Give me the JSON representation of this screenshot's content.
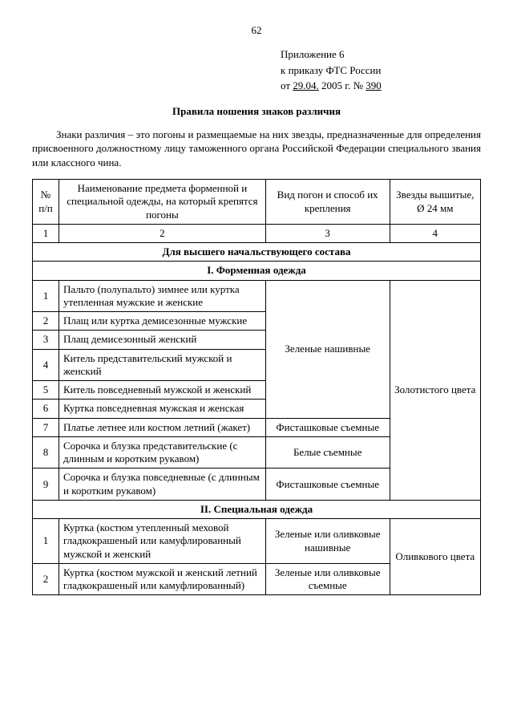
{
  "page_number": "62",
  "appendix": {
    "line1": "Приложение 6",
    "line2": "к приказу ФТС России",
    "line3_prefix": "от ",
    "date": "29.04.",
    "year_suffix": " 2005 г. № ",
    "num": "390"
  },
  "title": "Правила ношения знаков различия",
  "intro": "Знаки различия – это погоны и размещаемые на них звезды, предназначенные для определения присвоенного должностному лицу таможенного органа Российской Федерации специального звания или классного чина.",
  "header": {
    "col1": "№ п/п",
    "col2": "Наименование предмета форменной и специальной одежды, на который крепятся погоны",
    "col3": "Вид погон и способ их крепления",
    "col4": "Звезды вышитые, Ø 24 мм"
  },
  "colnums": {
    "c1": "1",
    "c2": "2",
    "c3": "3",
    "c4": "4"
  },
  "sections": {
    "top": "Для высшего начальствующего состава",
    "sec1": "I. Форменная одежда",
    "sec2": "II. Специальная одежда"
  },
  "s1": {
    "r1n": "1",
    "r1t": "Пальто (полупальто) зимнее или куртка утепленная мужские и женские",
    "r2n": "2",
    "r2t": "Плащ или куртка демисезонные мужские",
    "r3n": "3",
    "r3t": "Плащ демисезонный женский",
    "r4n": "4",
    "r4t": "Китель представительский мужской и женский",
    "r5n": "5",
    "r5t": "Китель повседневный мужской и женский",
    "r6n": "6",
    "r6t": "Куртка повседневная мужская и женская",
    "r7n": "7",
    "r7t": "Платье летнее или костюм летний (жакет)",
    "r8n": "8",
    "r8t": "Сорочка и блузка представительские (с длинным и коротким рукавом)",
    "r9n": "9",
    "r9t": "Сорочка и блузка повседневные (с длинным и коротким рукавом)",
    "m1": "Зеленые нашивные",
    "m2": "Фисташковые съемные",
    "m3": "Белые съемные",
    "m4": "Фисташковые съемные",
    "stars": "Золотистого цвета"
  },
  "s2": {
    "r1n": "1",
    "r1t": "Куртка (костюм утепленный меховой гладкокрашеный или камуфлированный мужской и женский",
    "r2n": "2",
    "r2t": "Куртка (костюм мужской и женский летний гладкокрашеный или камуфлированный)",
    "m1": "Зеленые или оливковые нашивные",
    "m2": "Зеленые или оливковые съемные",
    "stars": "Оливкового цвета"
  }
}
